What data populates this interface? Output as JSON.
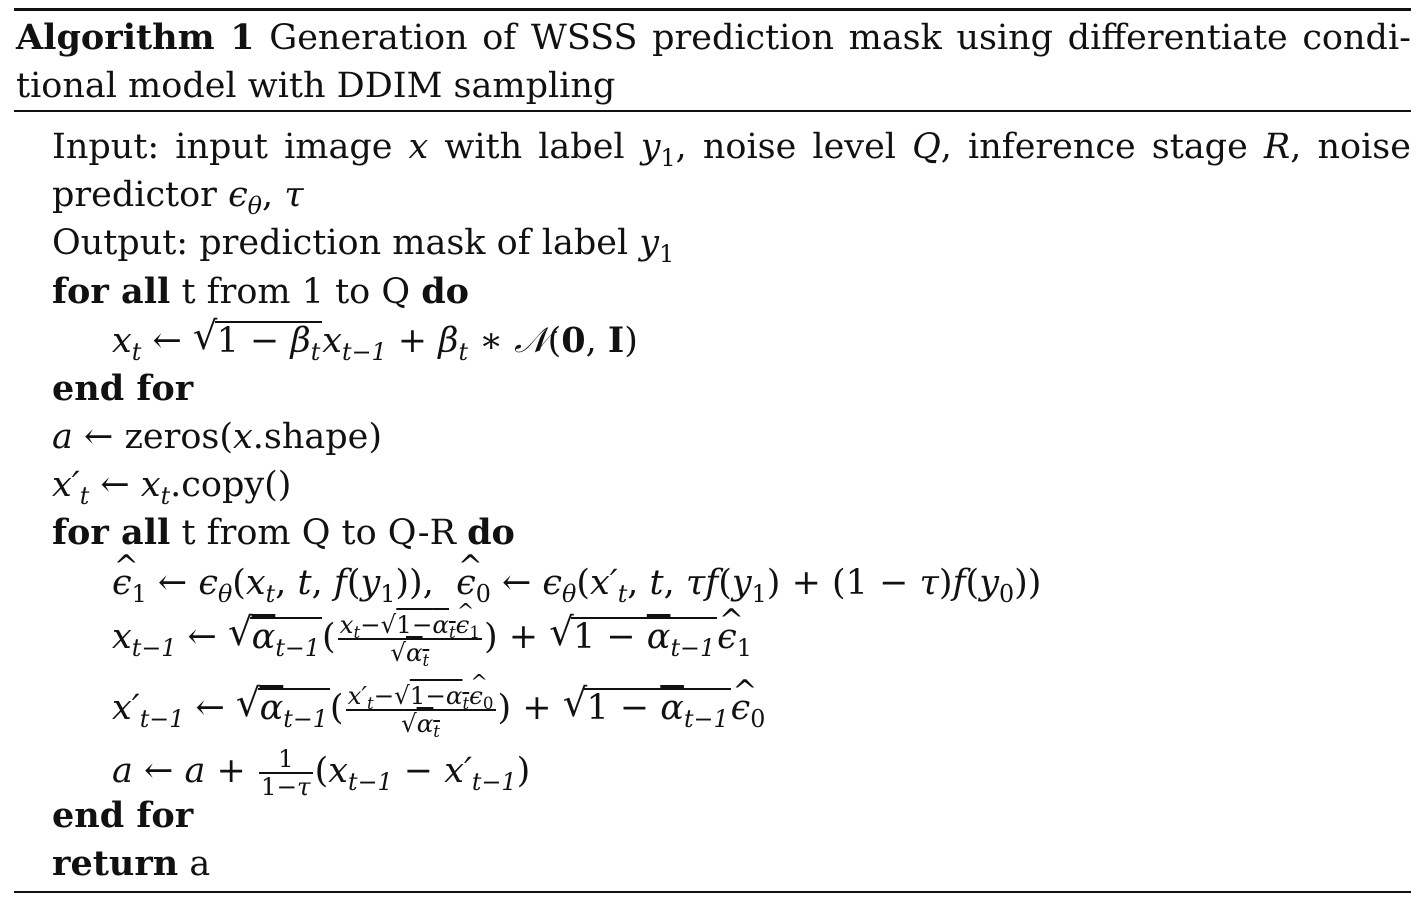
{
  "caption": {
    "label": "Algorithm 1",
    "title_part1": "Generation of WSSS prediction mask using differentiate condi-",
    "title_part2": "tional model with DDIM sampling"
  },
  "lines": {
    "input_prefix": "Input: input image",
    "input_mid1": "with label",
    "input_mid2": ", noise level",
    "input_mid3": ", inference stage",
    "input_mid4": ", noise",
    "input_line2_prefix": "predictor",
    "output_text": "Output: prediction mask of label",
    "for_all": "for all",
    "loop1_range": "t from 1 to Q",
    "do": "do",
    "end_for": "end for",
    "zeros_text": "zeros(",
    "shape_text": ".shape)",
    "copy_text": ".copy()",
    "loop2_range": "t from Q to Q-R",
    "return_kw": "return",
    "return_val": "a"
  }
}
